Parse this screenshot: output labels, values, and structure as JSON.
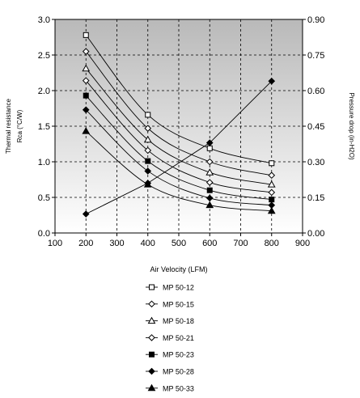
{
  "chart_data": {
    "type": "line",
    "xlabel": "Air Velocity (LFM)",
    "ylabel_line1": "Thermal resistance",
    "ylabel_line2": "Rca (°C/W)",
    "y2label": "Pressure drop (in-H2O)",
    "xlim": [
      100,
      900
    ],
    "x_ticks": [
      100,
      200,
      300,
      400,
      500,
      600,
      700,
      800,
      900
    ],
    "ylim": [
      0,
      3.0
    ],
    "y_ticks": [
      "0.0",
      "0.5",
      "1.0",
      "1.5",
      "2.0",
      "2.5",
      "3.0"
    ],
    "y2lim": [
      0,
      0.9
    ],
    "y2_ticks": [
      "0.00",
      "0.15",
      "0.30",
      "0.45",
      "0.60",
      "0.75",
      "0.90"
    ],
    "grid": true,
    "legend_position": "bottom",
    "x": [
      200,
      400,
      600,
      800
    ],
    "series": [
      {
        "name": "MP 50-12",
        "marker": "square-open",
        "values": [
          2.78,
          1.66,
          1.19,
          0.98
        ]
      },
      {
        "name": "MP 50-15",
        "marker": "diamond-open",
        "values": [
          2.55,
          1.47,
          1.0,
          0.81
        ]
      },
      {
        "name": "MP 50-18",
        "marker": "triangle-open",
        "values": [
          2.31,
          1.31,
          0.85,
          0.68
        ]
      },
      {
        "name": "MP 50-21",
        "marker": "diamond-open",
        "values": [
          2.14,
          1.16,
          0.71,
          0.57
        ]
      },
      {
        "name": "MP 50-23",
        "marker": "square-filled",
        "values": [
          1.93,
          1.01,
          0.6,
          0.47
        ]
      },
      {
        "name": "MP 50-28",
        "marker": "diamond-filled",
        "values": [
          1.73,
          0.87,
          0.49,
          0.39
        ]
      },
      {
        "name": "MP 50-33",
        "marker": "triangle-filled",
        "values": [
          1.43,
          0.68,
          0.39,
          0.31
        ]
      }
    ],
    "pressure_drop": {
      "axis": "right",
      "marker": "diamond-filled",
      "x": [
        200,
        400,
        600,
        800
      ],
      "values": [
        0.08,
        0.21,
        0.38,
        0.64
      ]
    }
  }
}
